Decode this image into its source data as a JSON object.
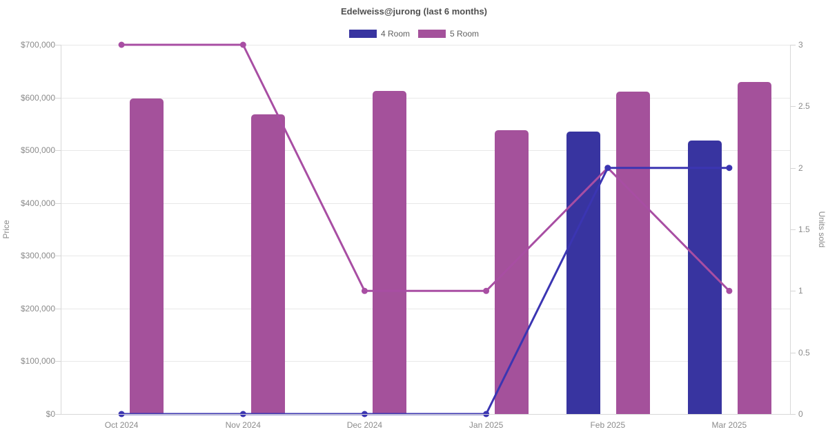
{
  "chart_data": {
    "type": "bar",
    "combo": "grouped bars (avg price) with line overlay (units sold)",
    "title": "Edelweiss@jurong (last 6 months)",
    "categories": [
      "Oct 2024",
      "Nov 2024",
      "Dec 2024",
      "Jan 2025",
      "Feb 2025",
      "Mar 2025"
    ],
    "series": [
      {
        "name": "4 Room",
        "bar_color": "#3834a0",
        "line_color": "#3b35b2",
        "price": [
          null,
          null,
          null,
          null,
          535000,
          518000
        ],
        "units_sold": [
          0,
          0,
          0,
          0,
          2,
          2
        ]
      },
      {
        "name": "5 Room",
        "bar_color": "#a4519b",
        "line_color": "#a84ea3",
        "price": [
          598000,
          568000,
          613000,
          538000,
          611000,
          629000
        ],
        "units_sold": [
          3,
          3,
          1,
          1,
          2,
          1
        ]
      }
    ],
    "left_axis": {
      "label": "Price",
      "min": 0,
      "max": 700000,
      "step": 100000,
      "tick_labels": [
        "$0",
        "$100,000",
        "$200,000",
        "$300,000",
        "$400,000",
        "$500,000",
        "$600,000",
        "$700,000"
      ]
    },
    "right_axis": {
      "label": "Units sold",
      "min": 0,
      "max": 3,
      "step": 0.5,
      "tick_labels": [
        "0",
        "0.5",
        "1",
        "1.5",
        "2",
        "2.5",
        "3"
      ]
    },
    "legend_position": "top",
    "grid": "horizontal-only",
    "colors": {
      "gridline": "#e8e8e8",
      "axis_line": "#d8d8d8",
      "tick_text": "#8b8b8b",
      "title_text": "#4f4f4f"
    }
  }
}
